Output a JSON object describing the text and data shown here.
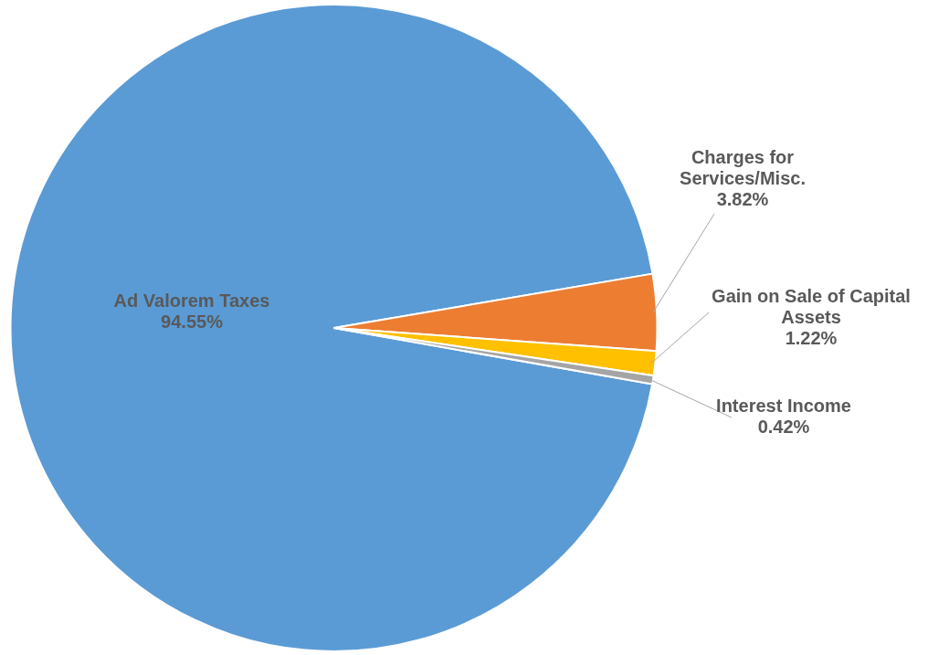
{
  "chart_data": {
    "type": "pie",
    "categories": [
      "Ad Valorem Taxes",
      "Charges for Services/Misc.",
      "Gain on Sale of Capital Assets",
      "Interest Income"
    ],
    "values": [
      94.55,
      3.82,
      1.22,
      0.42
    ],
    "colors": [
      "#5b9bd5",
      "#ed7d31",
      "#ffc000",
      "#a5a5a5"
    ],
    "value_labels": [
      "94.55%",
      "3.82%",
      "1.22%",
      "0.42%"
    ],
    "legend": false
  }
}
